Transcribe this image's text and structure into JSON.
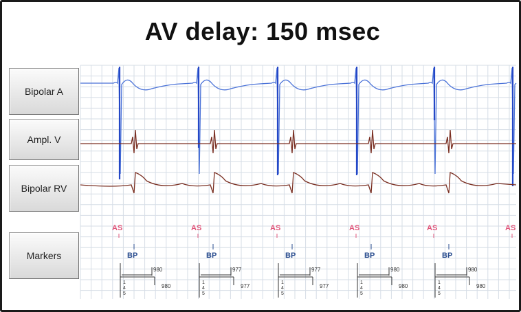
{
  "title": "AV delay: 150 msec",
  "channels": [
    {
      "id": "a",
      "label": "Bipolar A"
    },
    {
      "id": "v",
      "label": "Ampl. V"
    },
    {
      "id": "rv",
      "label": "Bipolar RV"
    },
    {
      "id": "m",
      "label": "Markers"
    }
  ],
  "colors": {
    "atrial_trace": "#4a72d8",
    "atrial_spike": "#2447c6",
    "ventricular_trace": "#7a2f22",
    "grid": "#d6dde6",
    "marker_as": "#e0557a",
    "marker_bp": "#2a4d8f"
  },
  "markers": {
    "beats": [
      {
        "as": "AS",
        "bp": "BP",
        "interval_1": "980",
        "interval_2": "980",
        "vertical_value": "145"
      },
      {
        "as": "AS",
        "bp": "BP",
        "interval_1": "977",
        "interval_2": "977",
        "vertical_value": "145"
      },
      {
        "as": "AS",
        "bp": "BP",
        "interval_1": "977",
        "interval_2": "977",
        "vertical_value": "145"
      },
      {
        "as": "AS",
        "bp": "BP",
        "interval_1": "980",
        "interval_2": "980",
        "vertical_value": "145"
      },
      {
        "as": "AS",
        "bp": "BP",
        "interval_1": "980",
        "interval_2": "980",
        "vertical_value": "145"
      },
      {
        "as": "AS"
      }
    ]
  }
}
